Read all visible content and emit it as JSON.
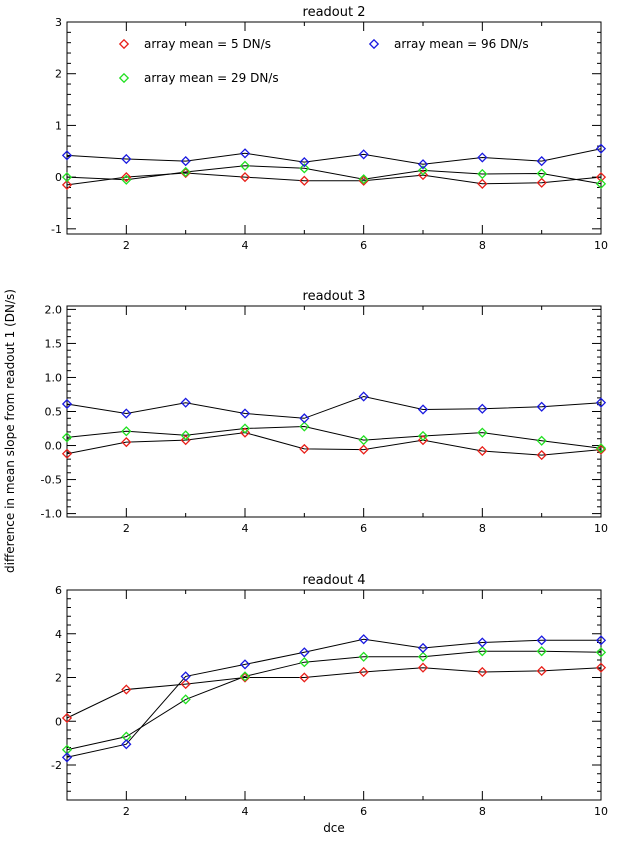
{
  "figure": {
    "ylabel": "difference in mean slope from readout 1 (DN/s)",
    "xlabel": "dce"
  },
  "legend": [
    {
      "label": "array mean = 5 DN/s",
      "color": "#e8201a"
    },
    {
      "label": "array mean = 29 DN/s",
      "color": "#22e022"
    },
    {
      "label": "array mean = 96 DN/s",
      "color": "#1a1ae0"
    }
  ],
  "chart_data": [
    {
      "type": "line",
      "title": "readout 2",
      "xlabel": "",
      "ylabel": "",
      "xlim": [
        1,
        10
      ],
      "ylim": [
        -1.1,
        3.0
      ],
      "xticks": [
        2,
        4,
        6,
        8,
        10
      ],
      "yticks": [
        -1,
        0,
        1,
        2,
        3
      ],
      "x": [
        1,
        2,
        3,
        4,
        5,
        6,
        7,
        8,
        9,
        10
      ],
      "series": [
        {
          "name": "array mean = 5 DN/s",
          "color": "#e8201a",
          "values": [
            -0.15,
            0.0,
            0.08,
            0.0,
            -0.07,
            -0.07,
            0.04,
            -0.13,
            -0.11,
            0.0
          ]
        },
        {
          "name": "array mean = 29 DN/s",
          "color": "#22e022",
          "values": [
            0.0,
            -0.05,
            0.1,
            0.22,
            0.17,
            -0.04,
            0.13,
            0.06,
            0.07,
            -0.13
          ]
        },
        {
          "name": "array mean = 96 DN/s",
          "color": "#1a1ae0",
          "values": [
            0.42,
            0.35,
            0.31,
            0.46,
            0.29,
            0.44,
            0.25,
            0.38,
            0.31,
            0.55
          ]
        }
      ]
    },
    {
      "type": "line",
      "title": "readout 3",
      "xlabel": "",
      "ylabel": "",
      "xlim": [
        1,
        10
      ],
      "ylim": [
        -1.05,
        2.05
      ],
      "xticks": [
        2,
        4,
        6,
        8,
        10
      ],
      "yticks": [
        -1.0,
        -0.5,
        0.0,
        0.5,
        1.0,
        1.5,
        2.0
      ],
      "ytick_labels": [
        "-1.0",
        "-0.5",
        "0.0",
        "0.5",
        "1.0",
        "1.5",
        "2.0"
      ],
      "x": [
        1,
        2,
        3,
        4,
        5,
        6,
        7,
        8,
        9,
        10
      ],
      "series": [
        {
          "name": "array mean = 5 DN/s",
          "color": "#e8201a",
          "values": [
            -0.12,
            0.05,
            0.08,
            0.19,
            -0.05,
            -0.06,
            0.08,
            -0.08,
            -0.14,
            -0.06
          ]
        },
        {
          "name": "array mean = 29 DN/s",
          "color": "#22e022",
          "values": [
            0.12,
            0.21,
            0.15,
            0.25,
            0.28,
            0.08,
            0.14,
            0.19,
            0.07,
            -0.04
          ]
        },
        {
          "name": "array mean = 96 DN/s",
          "color": "#1a1ae0",
          "values": [
            0.61,
            0.47,
            0.63,
            0.47,
            0.4,
            0.72,
            0.53,
            0.54,
            0.57,
            0.63
          ]
        }
      ]
    },
    {
      "type": "line",
      "title": "readout 4",
      "xlabel": "dce",
      "ylabel": "",
      "xlim": [
        1,
        10
      ],
      "ylim": [
        -3.6,
        6.0
      ],
      "xticks": [
        2,
        4,
        6,
        8,
        10
      ],
      "yticks": [
        -2,
        0,
        2,
        4,
        6
      ],
      "x": [
        1,
        2,
        3,
        4,
        5,
        6,
        7,
        8,
        9,
        10
      ],
      "series": [
        {
          "name": "array mean = 5 DN/s",
          "color": "#e8201a",
          "values": [
            0.15,
            1.45,
            1.7,
            2.0,
            2.0,
            2.25,
            2.45,
            2.25,
            2.3,
            2.45
          ]
        },
        {
          "name": "array mean = 29 DN/s",
          "color": "#22e022",
          "values": [
            -1.3,
            -0.7,
            1.0,
            2.05,
            2.7,
            2.95,
            2.95,
            3.2,
            3.2,
            3.15
          ]
        },
        {
          "name": "array mean = 96 DN/s",
          "color": "#1a1ae0",
          "values": [
            -1.65,
            -1.05,
            2.05,
            2.6,
            3.15,
            3.75,
            3.35,
            3.6,
            3.7,
            3.7
          ]
        }
      ]
    }
  ]
}
